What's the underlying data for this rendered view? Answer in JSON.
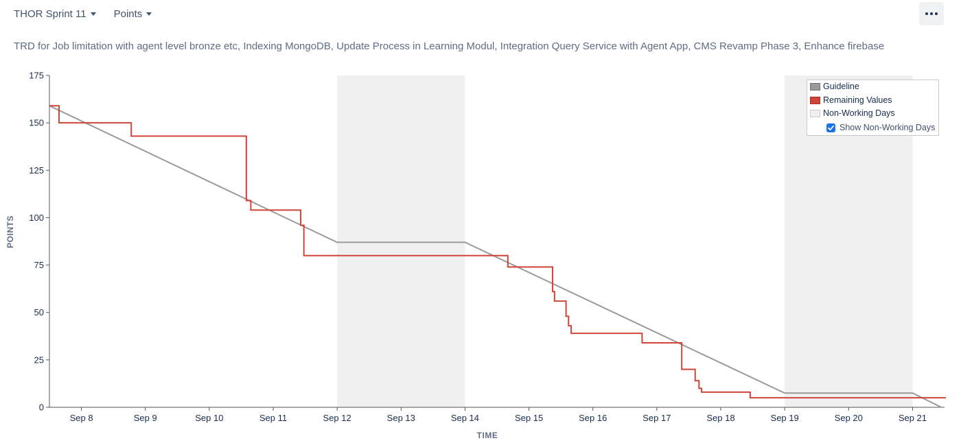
{
  "toolbar": {
    "sprint_label": "THOR Sprint 11",
    "metric_label": "Points",
    "more_icon": "ellipsis-icon"
  },
  "description": "TRD for Job limitation with agent level bronze etc, Indexing MongoDB, Update Process in Learning Modul, Integration Query Service with Agent App, CMS Revamp Phase 3, Enhance firebase",
  "legend": {
    "guideline": "Guideline",
    "remaining": "Remaining Values",
    "non_working": "Non-Working Days",
    "show_non_working": "Show Non-Working Days",
    "show_non_working_checked": true
  },
  "colors": {
    "guideline": "#999999",
    "remaining": "#d04437",
    "non_working": "#f0f0f0",
    "axis_text": "#172b4d",
    "axis_title": "#5e6c84"
  },
  "chart_data": {
    "type": "line",
    "xlabel": "TIME",
    "ylabel": "POINTS",
    "ylim": [
      0,
      175
    ],
    "y_ticks": [
      0,
      25,
      50,
      75,
      100,
      125,
      150,
      175
    ],
    "x_unit": "days from Sep 8",
    "xlim": [
      -0.5,
      13.5
    ],
    "x_ticks": [
      {
        "x": 0,
        "label": "Sep 8"
      },
      {
        "x": 1,
        "label": "Sep 9"
      },
      {
        "x": 2,
        "label": "Sep 10"
      },
      {
        "x": 3,
        "label": "Sep 11"
      },
      {
        "x": 4,
        "label": "Sep 12"
      },
      {
        "x": 5,
        "label": "Sep 13"
      },
      {
        "x": 6,
        "label": "Sep 14"
      },
      {
        "x": 7,
        "label": "Sep 15"
      },
      {
        "x": 8,
        "label": "Sep 16"
      },
      {
        "x": 9,
        "label": "Sep 17"
      },
      {
        "x": 10,
        "label": "Sep 18"
      },
      {
        "x": 11,
        "label": "Sep 19"
      },
      {
        "x": 12,
        "label": "Sep 20"
      },
      {
        "x": 13,
        "label": "Sep 21"
      }
    ],
    "non_working_days": [
      [
        4,
        6
      ],
      [
        11,
        13
      ]
    ],
    "grid": false,
    "legend_position": "top-right",
    "series": [
      {
        "name": "Guideline",
        "points": [
          [
            -0.5,
            159
          ],
          [
            4,
            87
          ],
          [
            6,
            87
          ],
          [
            11,
            7.5
          ],
          [
            13,
            7.5
          ],
          [
            13.45,
            0
          ]
        ]
      },
      {
        "name": "Remaining Values",
        "step_points": [
          [
            -0.5,
            159
          ],
          [
            -0.35,
            159
          ],
          [
            -0.35,
            150
          ],
          [
            0.78,
            150
          ],
          [
            0.78,
            143
          ],
          [
            2.58,
            143
          ],
          [
            2.58,
            109
          ],
          [
            2.65,
            109
          ],
          [
            2.65,
            104
          ],
          [
            3.43,
            104
          ],
          [
            3.43,
            96
          ],
          [
            3.48,
            96
          ],
          [
            3.48,
            80
          ],
          [
            6.67,
            80
          ],
          [
            6.67,
            74
          ],
          [
            7.37,
            74
          ],
          [
            7.37,
            61
          ],
          [
            7.4,
            61
          ],
          [
            7.4,
            56
          ],
          [
            7.58,
            56
          ],
          [
            7.58,
            48
          ],
          [
            7.62,
            48
          ],
          [
            7.62,
            43
          ],
          [
            7.66,
            43
          ],
          [
            7.66,
            39
          ],
          [
            8.77,
            39
          ],
          [
            8.77,
            34
          ],
          [
            9.39,
            34
          ],
          [
            9.39,
            20
          ],
          [
            9.6,
            20
          ],
          [
            9.6,
            14
          ],
          [
            9.66,
            14
          ],
          [
            9.66,
            10
          ],
          [
            9.7,
            10
          ],
          [
            9.7,
            8
          ],
          [
            10.46,
            8
          ],
          [
            10.46,
            5
          ],
          [
            13.6,
            5
          ],
          [
            13.6,
            0
          ],
          [
            13.7,
            0
          ]
        ]
      }
    ]
  }
}
